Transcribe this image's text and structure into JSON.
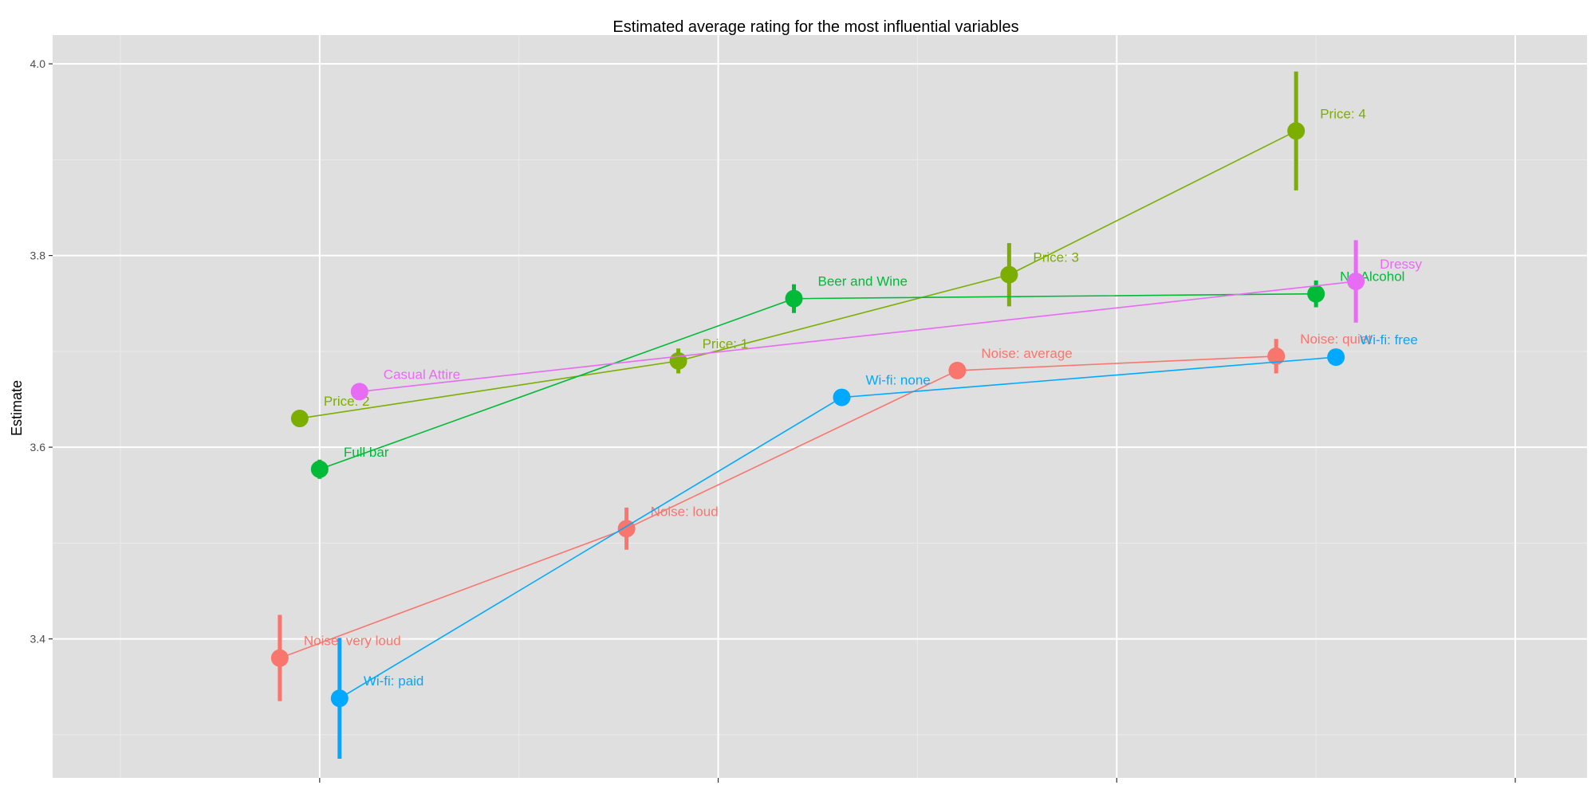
{
  "chart_data": {
    "type": "scatter",
    "title": "Estimated average rating for the most influential variables",
    "xlabel": "",
    "ylabel": "Estimate",
    "xlim": [
      0.33,
      4.18
    ],
    "ylim": [
      3.255,
      4.03
    ],
    "yticks": [
      3.4,
      3.6,
      3.8,
      4.0
    ],
    "ytick_labels": [
      "3.4",
      "3.6",
      "3.8",
      "4.0"
    ],
    "xticks": [
      1,
      2,
      3,
      4
    ],
    "grid": true,
    "legend": "none",
    "series": [
      {
        "color": "#F8766D",
        "points": [
          {
            "label": "Noise: very loud",
            "x": 0.9,
            "y": 3.38,
            "err": 0.045
          },
          {
            "label": "Noise: loud",
            "x": 1.77,
            "y": 3.515,
            "err": 0.022
          },
          {
            "label": "Noise: average",
            "x": 2.6,
            "y": 3.68,
            "err": 0.0
          },
          {
            "label": "Noise: quiet",
            "x": 3.4,
            "y": 3.695,
            "err": 0.018
          }
        ]
      },
      {
        "color": "#7CAE00",
        "points": [
          {
            "label": "Price: 2",
            "x": 0.95,
            "y": 3.63,
            "err": 0.0
          },
          {
            "label": "Price: 1",
            "x": 1.9,
            "y": 3.69,
            "err": 0.013
          },
          {
            "label": "Price: 3",
            "x": 2.73,
            "y": 3.78,
            "err": 0.033
          },
          {
            "label": "Price: 4",
            "x": 3.45,
            "y": 3.93,
            "err": 0.062
          }
        ]
      },
      {
        "color": "#00BA38",
        "points": [
          {
            "label": "Full bar",
            "x": 1.0,
            "y": 3.577,
            "err": 0.01
          },
          {
            "label": "Beer and Wine",
            "x": 2.19,
            "y": 3.755,
            "err": 0.015
          },
          {
            "label": "No Alcohol",
            "x": 3.5,
            "y": 3.76,
            "err": 0.014
          }
        ]
      },
      {
        "color": "#00A9FF",
        "points": [
          {
            "label": "Wi-fi: paid",
            "x": 1.05,
            "y": 3.338,
            "err": 0.063
          },
          {
            "label": "Wi-fi: none",
            "x": 2.31,
            "y": 3.652,
            "err": 0.0
          },
          {
            "label": "Wi-fi: free",
            "x": 3.55,
            "y": 3.694,
            "err": 0.007
          }
        ]
      },
      {
        "color": "#E76BF3",
        "points": [
          {
            "label": "Casual Attire",
            "x": 1.1,
            "y": 3.658,
            "err": 0.0
          },
          {
            "label": "Dressy",
            "x": 3.6,
            "y": 3.773,
            "err": 0.043
          }
        ]
      }
    ]
  },
  "colors": {
    "panel_background": "#DFDFDF",
    "grid_major": "#FFFFFF",
    "grid_minor": "#EBEBEB",
    "tick_label": "#4D4D4D"
  }
}
